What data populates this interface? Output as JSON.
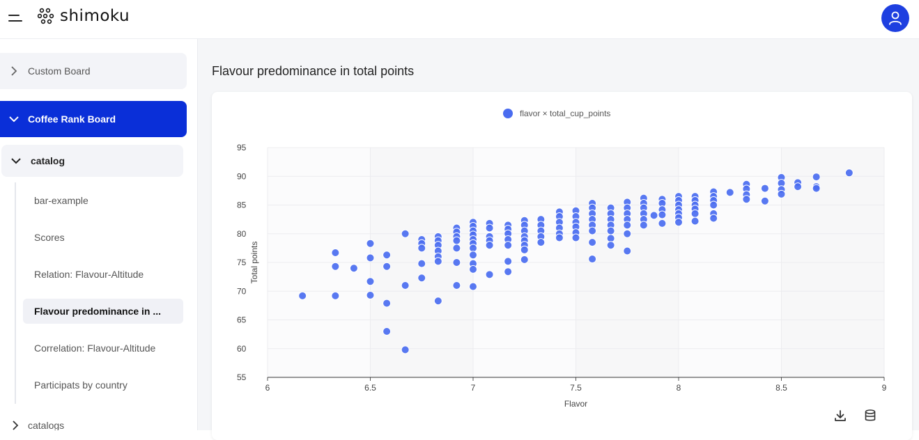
{
  "app": {
    "logo_text": "shimoku",
    "brand_color": "#0a2fd8",
    "accent_color": "#4a6cf0"
  },
  "header": {
    "menu_icon": "hamburger-icon",
    "user_icon": "user-icon"
  },
  "sidebar": {
    "boards": [
      {
        "label": "Custom Board",
        "expanded": false
      },
      {
        "label": "Coffee Rank Board",
        "expanded": true
      }
    ],
    "catalog": {
      "label": "catalog",
      "items": [
        {
          "label": "bar-example"
        },
        {
          "label": "Scores"
        },
        {
          "label": "Relation: Flavour-Altitude"
        },
        {
          "label": "Flavour predominance in ...",
          "active": true
        },
        {
          "label": "Correlation: Flavour-Altitude"
        },
        {
          "label": "Participats by country"
        }
      ]
    },
    "catalogs": {
      "label": "catalogs"
    }
  },
  "main": {
    "title": "Flavour predominance in total points",
    "download_icon": "download-icon",
    "data_icon": "database-icon"
  },
  "chart_data": {
    "type": "scatter",
    "legend": "flavor × total_cup_points",
    "legend_position": "top-center",
    "xlabel": "Flavor",
    "ylabel": "Total points",
    "xlim": [
      6,
      9
    ],
    "ylim": [
      55,
      95
    ],
    "xticks": [
      "6",
      "6.5",
      "7",
      "7.5",
      "8",
      "8.5",
      "9"
    ],
    "yticks": [
      "95",
      "90",
      "85",
      "80",
      "75",
      "70",
      "65",
      "60",
      "55"
    ],
    "grid": true,
    "color": "#4a6cf0",
    "points": [
      [
        6.17,
        69.2
      ],
      [
        6.33,
        76.7
      ],
      [
        6.33,
        74.3
      ],
      [
        6.33,
        69.2
      ],
      [
        6.42,
        74.0
      ],
      [
        6.5,
        78.3
      ],
      [
        6.5,
        75.8
      ],
      [
        6.5,
        71.7
      ],
      [
        6.5,
        69.3
      ],
      [
        6.58,
        76.3
      ],
      [
        6.58,
        74.3
      ],
      [
        6.58,
        67.9
      ],
      [
        6.58,
        63.0
      ],
      [
        6.67,
        80.0
      ],
      [
        6.67,
        71.0
      ],
      [
        6.67,
        59.8
      ],
      [
        6.75,
        79.0
      ],
      [
        6.75,
        78.3
      ],
      [
        6.75,
        77.5
      ],
      [
        6.75,
        74.8
      ],
      [
        6.75,
        72.3
      ],
      [
        6.83,
        79.5
      ],
      [
        6.83,
        78.8
      ],
      [
        6.83,
        78.0
      ],
      [
        6.83,
        77.0
      ],
      [
        6.83,
        76.0
      ],
      [
        6.83,
        75.2
      ],
      [
        6.83,
        68.3
      ],
      [
        6.92,
        81.0
      ],
      [
        6.92,
        80.3
      ],
      [
        6.92,
        79.5
      ],
      [
        6.92,
        78.8
      ],
      [
        6.92,
        77.5
      ],
      [
        6.92,
        75.0
      ],
      [
        6.92,
        71.0
      ],
      [
        7.0,
        82.0
      ],
      [
        7.0,
        81.3
      ],
      [
        7.0,
        80.5
      ],
      [
        7.0,
        79.8
      ],
      [
        7.0,
        79.0
      ],
      [
        7.0,
        78.3
      ],
      [
        7.0,
        77.5
      ],
      [
        7.0,
        76.3
      ],
      [
        7.0,
        74.8
      ],
      [
        7.0,
        73.8
      ],
      [
        7.0,
        70.8
      ],
      [
        7.08,
        81.8
      ],
      [
        7.08,
        81.0
      ],
      [
        7.08,
        79.5
      ],
      [
        7.08,
        78.8
      ],
      [
        7.08,
        78.0
      ],
      [
        7.08,
        72.9
      ],
      [
        7.17,
        81.5
      ],
      [
        7.17,
        80.8
      ],
      [
        7.17,
        80.0
      ],
      [
        7.17,
        79.0
      ],
      [
        7.17,
        78.0
      ],
      [
        7.17,
        75.2
      ],
      [
        7.17,
        73.4
      ],
      [
        7.25,
        82.3
      ],
      [
        7.25,
        81.5
      ],
      [
        7.25,
        80.5
      ],
      [
        7.25,
        79.5
      ],
      [
        7.25,
        78.8
      ],
      [
        7.25,
        78.0
      ],
      [
        7.25,
        77.2
      ],
      [
        7.25,
        75.5
      ],
      [
        7.33,
        82.5
      ],
      [
        7.33,
        81.5
      ],
      [
        7.33,
        80.5
      ],
      [
        7.33,
        79.5
      ],
      [
        7.33,
        78.5
      ],
      [
        7.42,
        83.8
      ],
      [
        7.42,
        83.0
      ],
      [
        7.42,
        82.0
      ],
      [
        7.42,
        81.0
      ],
      [
        7.42,
        80.0
      ],
      [
        7.42,
        79.3
      ],
      [
        7.5,
        84.0
      ],
      [
        7.5,
        83.0
      ],
      [
        7.5,
        82.0
      ],
      [
        7.5,
        81.2
      ],
      [
        7.5,
        80.2
      ],
      [
        7.5,
        79.3
      ],
      [
        7.58,
        85.3
      ],
      [
        7.58,
        84.5
      ],
      [
        7.58,
        83.5
      ],
      [
        7.58,
        82.5
      ],
      [
        7.58,
        81.5
      ],
      [
        7.58,
        80.5
      ],
      [
        7.58,
        78.5
      ],
      [
        7.58,
        75.6
      ],
      [
        7.67,
        84.5
      ],
      [
        7.67,
        83.5
      ],
      [
        7.67,
        82.5
      ],
      [
        7.67,
        81.5
      ],
      [
        7.67,
        80.5
      ],
      [
        7.67,
        79.2
      ],
      [
        7.67,
        78.0
      ],
      [
        7.75,
        85.5
      ],
      [
        7.75,
        84.5
      ],
      [
        7.75,
        83.5
      ],
      [
        7.75,
        82.5
      ],
      [
        7.75,
        81.5
      ],
      [
        7.75,
        80.0
      ],
      [
        7.75,
        77.0
      ],
      [
        7.83,
        86.2
      ],
      [
        7.83,
        85.3
      ],
      [
        7.83,
        84.5
      ],
      [
        7.83,
        83.5
      ],
      [
        7.83,
        82.5
      ],
      [
        7.83,
        81.5
      ],
      [
        7.88,
        83.2
      ],
      [
        7.92,
        86.0
      ],
      [
        7.92,
        85.3
      ],
      [
        7.92,
        84.2
      ],
      [
        7.92,
        83.3
      ],
      [
        7.92,
        81.8
      ],
      [
        8.0,
        86.5
      ],
      [
        8.0,
        85.8
      ],
      [
        8.0,
        85.0
      ],
      [
        8.0,
        84.2
      ],
      [
        8.0,
        83.5
      ],
      [
        8.0,
        82.8
      ],
      [
        8.0,
        82.0
      ],
      [
        8.08,
        86.5
      ],
      [
        8.08,
        85.8
      ],
      [
        8.08,
        85.0
      ],
      [
        8.08,
        84.3
      ],
      [
        8.08,
        83.5
      ],
      [
        8.08,
        82.2
      ],
      [
        8.17,
        87.3
      ],
      [
        8.17,
        86.5
      ],
      [
        8.17,
        85.8
      ],
      [
        8.17,
        85.0
      ],
      [
        8.17,
        83.5
      ],
      [
        8.17,
        82.7
      ],
      [
        8.25,
        87.2
      ],
      [
        8.33,
        88.6
      ],
      [
        8.33,
        87.8
      ],
      [
        8.33,
        86.8
      ],
      [
        8.33,
        86.0
      ],
      [
        8.42,
        87.9
      ],
      [
        8.42,
        85.7
      ],
      [
        8.5,
        89.8
      ],
      [
        8.5,
        88.8
      ],
      [
        8.5,
        87.7
      ],
      [
        8.5,
        86.9
      ],
      [
        8.58,
        88.9
      ],
      [
        8.58,
        88.2
      ],
      [
        8.67,
        89.9
      ],
      [
        8.67,
        88.2
      ],
      [
        8.67,
        87.9
      ],
      [
        8.83,
        90.6
      ]
    ]
  }
}
